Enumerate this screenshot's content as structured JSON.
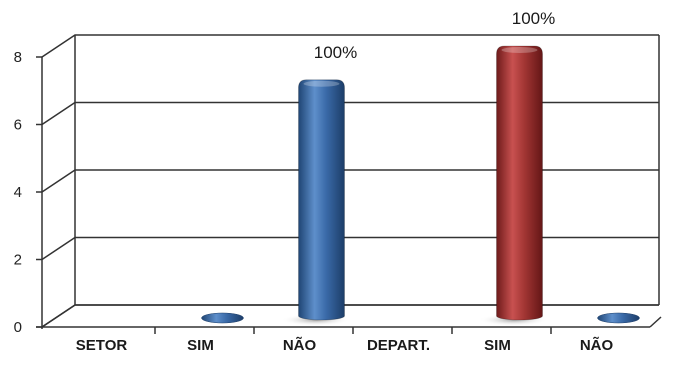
{
  "chart_data": {
    "type": "bar",
    "style": "3d-cylinder",
    "categories": [
      "SETOR",
      "SIM",
      "NÃO",
      "DEPART.",
      "SIM",
      "NÃO"
    ],
    "values": [
      null,
      0,
      7,
      null,
      8,
      0
    ],
    "bar_colors": [
      "",
      "#2f5f9a",
      "#2f5f9a",
      "",
      "#9b2b2a",
      "#2f5f9a"
    ],
    "data_labels": [
      "",
      "",
      "100%",
      "",
      "100%",
      ""
    ],
    "yticks": [
      0,
      2,
      4,
      6,
      8
    ],
    "ylim": [
      0,
      8
    ],
    "grid": true,
    "legend": "none",
    "title": "",
    "xlabel": "",
    "ylabel": ""
  }
}
